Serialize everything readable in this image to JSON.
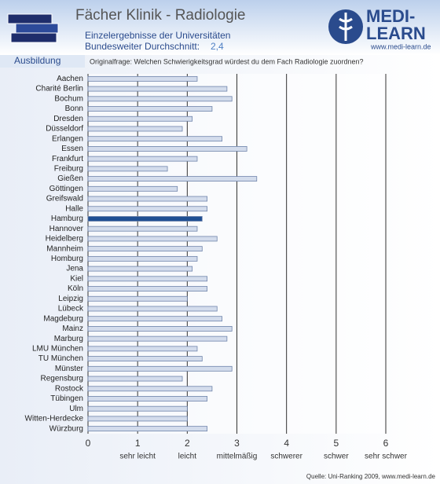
{
  "header": {
    "title": "Fächer Klinik - Radiologie",
    "subtitle": "Einzelergebnisse der Universitäten",
    "average_label": "Bundesweiter Durchschnitt:",
    "average": "2,4",
    "section": "Ausbildung",
    "question": "Originalfrage: Welchen Schwierigkeitsgrad würdest du dem Fach Radiologie zuordnen?",
    "logo_top": "MEDI-",
    "logo_bottom": "LEARN",
    "logo_url": "www.medi-learn.de"
  },
  "chart_data": {
    "type": "hbar",
    "categories": [
      "Aachen",
      "Charité Berlin",
      "Bochum",
      "Bonn",
      "Dresden",
      "Düsseldorf",
      "Erlangen",
      "Essen",
      "Frankfurt",
      "Freiburg",
      "Gießen",
      "Göttingen",
      "Greifswald",
      "Halle",
      "Hamburg",
      "Hannover",
      "Heidelberg",
      "Mannheim",
      "Homburg",
      "Jena",
      "Kiel",
      "Köln",
      "Leipzig",
      "Lübeck",
      "Magdeburg",
      "Mainz",
      "Marburg",
      "LMU München",
      "TU München",
      "Münster",
      "Regensburg",
      "Rostock",
      "Tübingen",
      "Ulm",
      "Witten-Herdecke",
      "Würzburg"
    ],
    "values": [
      2.2,
      2.8,
      2.9,
      2.5,
      2.1,
      1.9,
      2.7,
      3.2,
      2.2,
      1.6,
      3.4,
      1.8,
      2.4,
      2.4,
      2.3,
      2.2,
      2.6,
      2.3,
      2.2,
      2.1,
      2.4,
      2.4,
      2.0,
      2.6,
      2.7,
      2.9,
      2.8,
      2.2,
      2.3,
      2.9,
      1.9,
      2.5,
      2.4,
      2.0,
      2.0,
      2.4
    ],
    "colors": [
      "#d3dcec",
      "#d3dcec",
      "#d3dcec",
      "#d3dcec",
      "#d3dcec",
      "#d3dcec",
      "#d3dcec",
      "#d3dcec",
      "#d3dcec",
      "#d3dcec",
      "#d3dcec",
      "#d3dcec",
      "#d3dcec",
      "#d3dcec",
      "#1f4f93",
      "#d3dcec",
      "#d3dcec",
      "#d3dcec",
      "#d3dcec",
      "#d3dcec",
      "#d3dcec",
      "#d3dcec",
      "#d3dcec",
      "#d3dcec",
      "#d3dcec",
      "#d3dcec",
      "#d3dcec",
      "#d3dcec",
      "#d3dcec",
      "#d3dcec",
      "#d3dcec",
      "#d3dcec",
      "#d3dcec",
      "#d3dcec",
      "#d3dcec",
      "#d3dcec"
    ],
    "xlim": [
      0,
      6
    ],
    "xticks": [
      0,
      1,
      2,
      3,
      4,
      5,
      6
    ],
    "xtick_texts": [
      {
        "value": 1,
        "label": "sehr leicht"
      },
      {
        "value": 2,
        "label": "leicht"
      },
      {
        "value": 3,
        "label": "mittelmäßig"
      },
      {
        "value": 4,
        "label": "schwerer"
      },
      {
        "value": 5,
        "label": "schwer"
      },
      {
        "value": 6,
        "label": "sehr schwer"
      }
    ],
    "grid": true,
    "source": "Quelle: Uni-Ranking 2009, www.medi-learn.de"
  }
}
